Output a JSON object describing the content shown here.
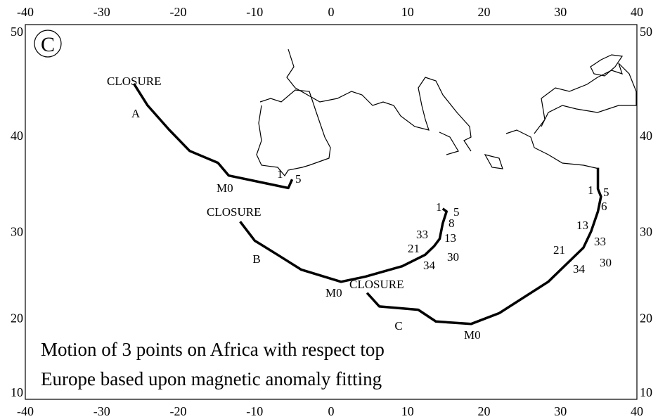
{
  "chart_data": {
    "type": "track-map",
    "caption": [
      "Motion of 3 points on Africa with respect top",
      "Europe based upon magnetic anomaly fitting"
    ],
    "panel_label": "C",
    "xlim": [
      -40,
      40
    ],
    "xticks": [
      -40,
      -30,
      -20,
      -10,
      0,
      10,
      20,
      30,
      40
    ],
    "ylim": [
      10,
      50
    ],
    "yticks": [
      10,
      20,
      30,
      40,
      50
    ],
    "yscale": "mercator",
    "color": "#000000",
    "series": [
      {
        "name": "A",
        "labels": [
          "CLOSURE",
          "M0",
          "1",
          "5"
        ],
        "x": [
          -25.8,
          -24.0,
          -21.2,
          -18.5,
          -14.8,
          -13.4,
          -5.6,
          -5.1
        ],
        "y": [
          44.9,
          42.9,
          40.6,
          38.5,
          37.3,
          36.0,
          34.7,
          35.6
        ]
      },
      {
        "name": "B",
        "labels": [
          "CLOSURE",
          "M0",
          "1",
          "5",
          "8",
          "33",
          "13",
          "21",
          "30",
          "34"
        ],
        "x": [
          -11.9,
          -10.0,
          -7.0,
          -3.9,
          1.3,
          4.5,
          9.3,
          12.3,
          13.5,
          14.2,
          14.6,
          15.1,
          14.6
        ],
        "y": [
          31.1,
          29.0,
          27.4,
          25.7,
          24.3,
          24.9,
          26.1,
          27.4,
          28.4,
          29.2,
          30.9,
          32.2,
          32.5
        ]
      },
      {
        "name": "C",
        "labels": [
          "CLOSURE",
          "M0",
          "1",
          "5",
          "6",
          "13",
          "33",
          "21",
          "30",
          "34"
        ],
        "x": [
          4.7,
          6.3,
          11.4,
          13.7,
          18.3,
          22.0,
          28.4,
          33.0,
          34.0,
          34.9,
          35.3,
          34.9,
          34.9
        ],
        "y": [
          23.0,
          21.4,
          21.0,
          19.6,
          19.3,
          20.6,
          24.3,
          28.2,
          30.0,
          32.2,
          33.8,
          34.6,
          36.8
        ]
      }
    ]
  }
}
